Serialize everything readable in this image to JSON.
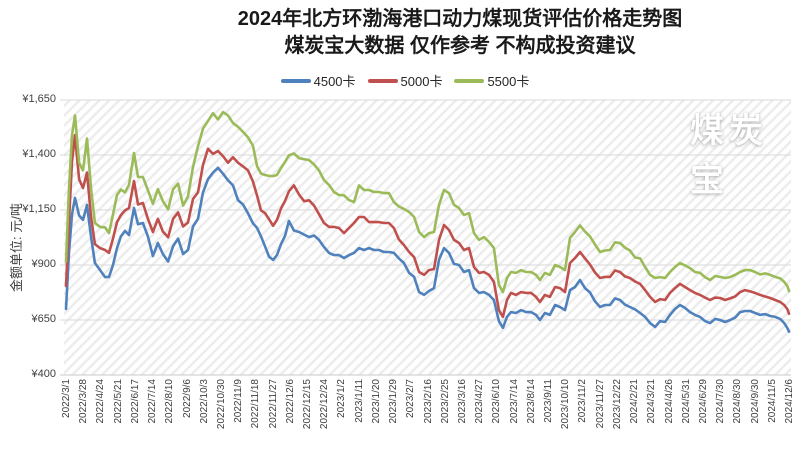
{
  "title": {
    "line1": "2024年北方环渤海港口动力煤现货评估价格走势图",
    "line2": "煤炭宝大数据 仅作参考 不构成投资建议"
  },
  "legend": [
    {
      "label": "4500卡",
      "color": "#4F81BD"
    },
    {
      "label": "5000卡",
      "color": "#C0504D"
    },
    {
      "label": "5500卡",
      "color": "#9BBB59"
    }
  ],
  "watermark": "煤炭宝",
  "y_axis": {
    "title": "金额单位: 元/吨",
    "labels": [
      "¥1,650",
      "¥1,400",
      "¥1,150",
      "¥900",
      "¥650",
      "¥400"
    ],
    "min": 400,
    "max": 1650,
    "step": 250
  },
  "x_axis": {
    "labels": [
      "2022/3/1",
      "2022/3/28",
      "2022/4/24",
      "2022/5/21",
      "2022/6/17",
      "2022/7/14",
      "2022/8/10",
      "2022/9/6",
      "2022/10/3",
      "2022/10/30",
      "2022/11/9",
      "2022/11/18",
      "2022/11/27",
      "2022/12/6",
      "2022/12/15",
      "2022/12/24",
      "2023/1/2",
      "2023/1/11",
      "2023/1/20",
      "2023/1/29",
      "2023/2/7",
      "2023/2/16",
      "2023/2/25",
      "2023/3/16",
      "2023/4/27",
      "2023/6/10",
      "2023/7/14",
      "2023/8/14",
      "2023/9/11",
      "2023/10/10",
      "2023/11/2",
      "2023/11/27",
      "2023/12/22",
      "2024/2/21",
      "2024/3/21",
      "2024/4/26",
      "2024/5/31",
      "2024/6/29",
      "2024/7/30",
      "2024/8/30",
      "2024/9/30",
      "2024/11/5",
      "2024/12/6"
    ]
  },
  "chart_data": {
    "type": "line",
    "title": "2024年北方环渤海港口动力煤现货评估价格走势图",
    "subtitle": "煤炭宝大数据 仅作参考 不构成投资建议",
    "ylabel": "金额单位: 元/吨",
    "ylim": [
      400,
      1650
    ],
    "y_tick_step": 250,
    "grid": true,
    "legend_position": "top",
    "x_tick_labels": [
      "2022/3/1",
      "2022/3/28",
      "2022/4/24",
      "2022/5/21",
      "2022/6/17",
      "2022/7/14",
      "2022/8/10",
      "2022/9/6",
      "2022/10/3",
      "2022/10/30",
      "2022/11/9",
      "2022/11/18",
      "2022/11/27",
      "2022/12/6",
      "2022/12/15",
      "2022/12/24",
      "2023/1/2",
      "2023/1/11",
      "2023/1/20",
      "2023/1/29",
      "2023/2/7",
      "2023/2/16",
      "2023/2/25",
      "2023/3/16",
      "2023/4/27",
      "2023/6/10",
      "2023/7/14",
      "2023/8/14",
      "2023/9/11",
      "2023/10/10",
      "2023/11/2",
      "2023/11/27",
      "2023/12/22",
      "2024/2/21",
      "2024/3/21",
      "2024/4/26",
      "2024/5/31",
      "2024/6/29",
      "2024/7/30",
      "2024/8/30",
      "2024/9/30",
      "2024/11/5",
      "2024/12/6"
    ],
    "x": [
      0,
      0.17,
      0.35,
      0.52,
      0.76,
      0.99,
      1.22,
      1.45,
      1.68,
      1.98,
      2.27,
      2.5,
      2.73,
      2.96,
      3.19,
      3.43,
      3.66,
      3.95,
      4.18,
      4.47,
      4.76,
      5.05,
      5.34,
      5.63,
      5.93,
      6.22,
      6.51,
      6.8,
      7.09,
      7.38,
      7.67,
      7.96,
      8.25,
      8.54,
      8.83,
      9.12,
      9.41,
      9.7,
      9.99,
      10.28,
      10.57,
      10.86,
      11.1,
      11.33,
      11.56,
      11.79,
      12.03,
      12.26,
      12.49,
      12.72,
      12.95,
      13.24,
      13.54,
      13.83,
      14.12,
      14.41,
      14.7,
      14.99,
      15.28,
      15.57,
      15.86,
      16.15,
      16.44,
      16.73,
      17.02,
      17.31,
      17.6,
      17.89,
      18.18,
      18.47,
      18.76,
      19.05,
      19.34,
      19.63,
      19.93,
      20.22,
      20.51,
      20.8,
      21.09,
      21.38,
      21.67,
      21.96,
      22.25,
      22.54,
      22.83,
      23.12,
      23.41,
      23.7,
      23.99,
      24.28,
      24.57,
      24.86,
      25.15,
      25.38,
      25.62,
      25.85,
      26.14,
      26.43,
      26.72,
      27.01,
      27.3,
      27.53,
      27.82,
      28.11,
      28.41,
      28.7,
      28.99,
      29.28,
      29.57,
      29.86,
      30.15,
      30.44,
      30.73,
      31.02,
      31.31,
      31.6,
      31.89,
      32.18,
      32.47,
      32.76,
      33.06,
      33.35,
      33.64,
      33.93,
      34.22,
      34.51,
      34.8,
      35.09,
      35.38,
      35.67,
      35.96,
      36.25,
      36.54,
      36.83,
      37.12,
      37.41,
      37.71,
      38.0,
      38.29,
      38.58,
      38.87,
      39.16,
      39.45,
      39.74,
      40.03,
      40.32,
      40.61,
      40.91,
      41.2,
      41.49,
      41.72,
      41.9,
      42.0
    ],
    "series": [
      {
        "name": "4500卡",
        "color": "#4F81BD",
        "values": [
          700,
          950,
          1130,
          1205,
          1125,
          1105,
          1173,
          1030,
          909,
          877,
          845,
          846,
          900,
          977,
          1030,
          1055,
          1036,
          1159,
          1085,
          1091,
          1030,
          941,
          1000,
          950,
          916,
          986,
          1020,
          950,
          968,
          1075,
          1110,
          1230,
          1290,
          1320,
          1342,
          1315,
          1285,
          1262,
          1195,
          1175,
          1135,
          1090,
          1068,
          1030,
          985,
          938,
          923,
          945,
          995,
          1032,
          1100,
          1057,
          1050,
          1038,
          1027,
          1034,
          1014,
          982,
          955,
          945,
          945,
          932,
          945,
          955,
          977,
          968,
          977,
          968,
          968,
          959,
          959,
          955,
          930,
          909,
          864,
          846,
          777,
          764,
          782,
          795,
          923,
          977,
          955,
          905,
          900,
          868,
          877,
          795,
          773,
          777,
          764,
          741,
          645,
          614,
          664,
          686,
          682,
          695,
          686,
          686,
          673,
          650,
          682,
          673,
          718,
          709,
          695,
          786,
          800,
          832,
          795,
          775,
          735,
          709,
          718,
          718,
          748,
          741,
          720,
          709,
          698,
          682,
          664,
          636,
          618,
          645,
          641,
          673,
          700,
          718,
          705,
          686,
          673,
          664,
          645,
          636,
          655,
          650,
          641,
          650,
          661,
          686,
          691,
          691,
          682,
          673,
          677,
          668,
          664,
          655,
          636,
          614,
          597
        ]
      },
      {
        "name": "5000卡",
        "color": "#C0504D",
        "values": [
          805,
          1090,
          1370,
          1490,
          1290,
          1250,
          1320,
          1120,
          995,
          977,
          968,
          955,
          1020,
          1095,
          1127,
          1148,
          1159,
          1282,
          1175,
          1182,
          1110,
          1050,
          1110,
          1052,
          1026,
          1110,
          1139,
          1075,
          1093,
          1200,
          1230,
          1355,
          1428,
          1405,
          1418,
          1395,
          1365,
          1390,
          1365,
          1348,
          1330,
          1280,
          1215,
          1148,
          1136,
          1108,
          1078,
          1105,
          1157,
          1191,
          1235,
          1262,
          1220,
          1190,
          1194,
          1170,
          1131,
          1091,
          1073,
          1073,
          1068,
          1045,
          1068,
          1091,
          1118,
          1118,
          1095,
          1095,
          1095,
          1091,
          1091,
          1068,
          1016,
          991,
          959,
          936,
          868,
          855,
          877,
          882,
          1014,
          1082,
          1059,
          1014,
          1000,
          968,
          977,
          891,
          864,
          868,
          855,
          823,
          695,
          664,
          741,
          773,
          764,
          777,
          773,
          773,
          755,
          732,
          764,
          755,
          800,
          795,
          777,
          909,
          932,
          959,
          930,
          902,
          866,
          841,
          846,
          846,
          875,
          868,
          848,
          841,
          825,
          814,
          786,
          755,
          732,
          745,
          741,
          773,
          795,
          814,
          800,
          786,
          773,
          764,
          752,
          741,
          752,
          750,
          741,
          748,
          757,
          777,
          786,
          780,
          773,
          764,
          757,
          750,
          741,
          732,
          718,
          700,
          678
        ]
      },
      {
        "name": "5500卡",
        "color": "#9BBB59",
        "values": [
          915,
          1240,
          1490,
          1580,
          1365,
          1330,
          1475,
          1250,
          1091,
          1073,
          1071,
          1045,
          1130,
          1218,
          1243,
          1230,
          1264,
          1409,
          1300,
          1300,
          1240,
          1178,
          1245,
          1190,
          1153,
          1245,
          1270,
          1170,
          1212,
          1345,
          1440,
          1520,
          1555,
          1590,
          1562,
          1595,
          1580,
          1545,
          1528,
          1505,
          1480,
          1443,
          1348,
          1316,
          1309,
          1305,
          1304,
          1309,
          1341,
          1368,
          1398,
          1407,
          1386,
          1381,
          1377,
          1357,
          1330,
          1286,
          1264,
          1232,
          1218,
          1217,
          1195,
          1186,
          1262,
          1241,
          1241,
          1232,
          1232,
          1227,
          1227,
          1186,
          1166,
          1155,
          1141,
          1118,
          1050,
          1027,
          1045,
          1050,
          1173,
          1241,
          1227,
          1173,
          1159,
          1127,
          1136,
          1045,
          1014,
          1027,
          1005,
          977,
          810,
          777,
          841,
          868,
          864,
          877,
          868,
          868,
          855,
          832,
          864,
          855,
          900,
          891,
          877,
          1023,
          1050,
          1080,
          1052,
          1030,
          993,
          959,
          966,
          968,
          1003,
          1000,
          979,
          966,
          934,
          930,
          891,
          855,
          841,
          845,
          841,
          868,
          891,
          909,
          898,
          886,
          868,
          864,
          845,
          832,
          850,
          846,
          841,
          845,
          855,
          868,
          877,
          877,
          868,
          857,
          862,
          855,
          846,
          839,
          823,
          805,
          782
        ]
      }
    ]
  }
}
